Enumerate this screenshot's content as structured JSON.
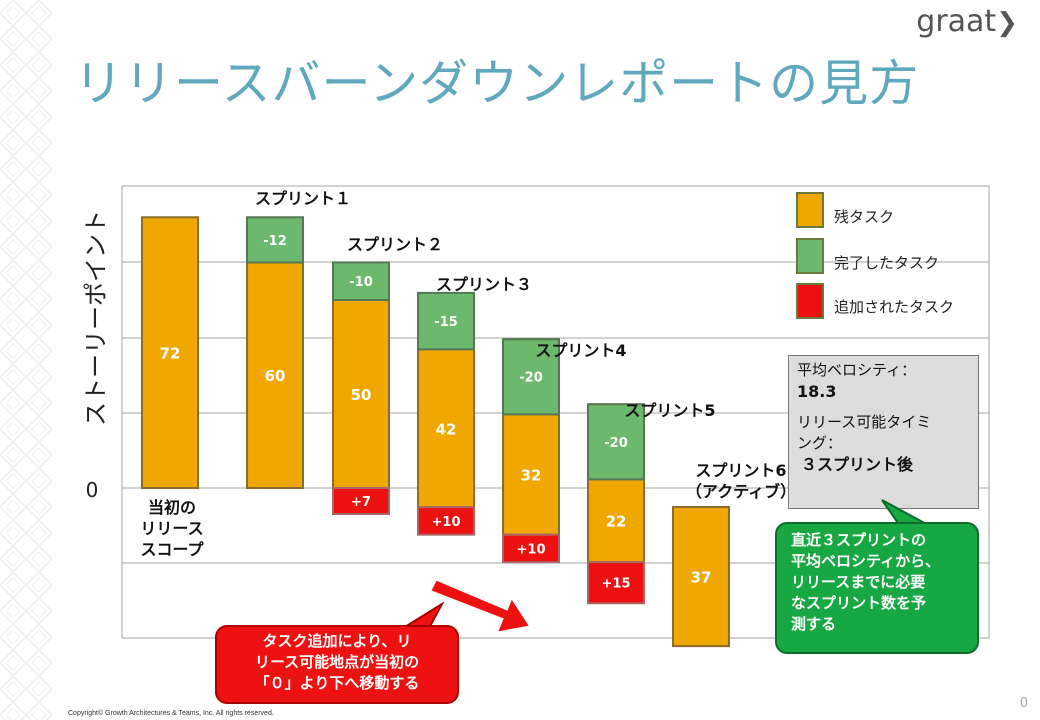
{
  "header": {
    "logo": "graat",
    "title": "リリースバーンダウンレポートの見方"
  },
  "chart_data": {
    "type": "bar",
    "ylabel": "ストーリーポイント",
    "zero_label": "0",
    "bars": [
      {
        "label": "当初の\nリリース\nスコープ",
        "remaining": 72,
        "completed": null,
        "added": null
      },
      {
        "label": "スプリント１",
        "remaining": 60,
        "completed": -12,
        "added": null
      },
      {
        "label": "スプリント２",
        "remaining": 50,
        "completed": -10,
        "added": 7
      },
      {
        "label": "スプリント３",
        "remaining": 42,
        "completed": -15,
        "added": 10
      },
      {
        "label": "スプリント4",
        "remaining": 32,
        "completed": -20,
        "added": 10
      },
      {
        "label": "スプリント5",
        "remaining": 22,
        "completed": -20,
        "added": 15
      },
      {
        "label": "スプリント6\n（アクティブ）",
        "remaining": 37,
        "completed": null,
        "added": null
      }
    ],
    "value_labels": {
      "remaining": [
        "72",
        "60",
        "50",
        "42",
        "32",
        "22",
        "37"
      ],
      "completed": [
        "",
        "-12",
        "-10",
        "-15",
        "-20",
        "-20",
        ""
      ],
      "added": [
        "",
        "",
        "+7",
        "+10",
        "+10",
        "+15",
        ""
      ]
    },
    "legend": [
      {
        "name": "残タスク",
        "color": "#f0a800"
      },
      {
        "name": "完了したタスク",
        "color": "#6cb86c"
      },
      {
        "name": "追加されたタスク",
        "color": "#ee1111"
      }
    ],
    "colors": {
      "remaining": "#f0a800",
      "completed": "#6cb86c",
      "added": "#ee1111",
      "gridline": "#a6a6a6"
    }
  },
  "velocity_box": {
    "line1": "平均ベロシティ：",
    "line2": "18.3",
    "line3": "リリース可能タイミ",
    "line4": "ング：",
    "line5": "３スプリント後"
  },
  "green_callout": {
    "line1": "直近３スプリントの",
    "line2": "平均ベロシティから、",
    "line3": "リリースまでに必要",
    "line4": "なスプリント数を予",
    "line5": "測する"
  },
  "red_callout": {
    "line1": "タスク追加により、リ",
    "line2": "リース可能地点が当初の",
    "line3": "「０」より下へ移動する"
  },
  "footer": {
    "copyright": "Copyright© Growth Architectures & Teams, Inc. All rights reserved.",
    "page": "0"
  }
}
